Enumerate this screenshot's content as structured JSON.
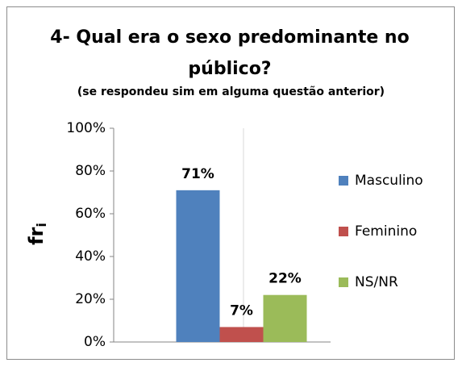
{
  "chart_data": {
    "type": "bar",
    "title": "4- Qual era o sexo predominante no público?",
    "subtitle": "(se respondeu sim em alguma questão anterior)",
    "y_label": "fr",
    "y_label_subscript": "i",
    "categories": [
      null
    ],
    "series": [
      {
        "name": "Masculino",
        "color": "#4f81bd",
        "values": [
          71
        ],
        "value_labels": [
          "71%"
        ]
      },
      {
        "name": "Feminino",
        "color": "#c0504d",
        "values": [
          7
        ],
        "value_labels": [
          "7%"
        ]
      },
      {
        "name": "NS/NR",
        "color": "#9bbb59",
        "values": [
          22
        ],
        "value_labels": [
          "22%"
        ]
      }
    ],
    "ylim": [
      0,
      100
    ],
    "yticks": [
      {
        "value": 0,
        "label": "0%"
      },
      {
        "value": 20,
        "label": "20%"
      },
      {
        "value": 40,
        "label": "40%"
      },
      {
        "value": 60,
        "label": "60%"
      },
      {
        "value": 80,
        "label": "80%"
      },
      {
        "value": 100,
        "label": "100%"
      }
    ],
    "grid": false,
    "legend": "right"
  }
}
